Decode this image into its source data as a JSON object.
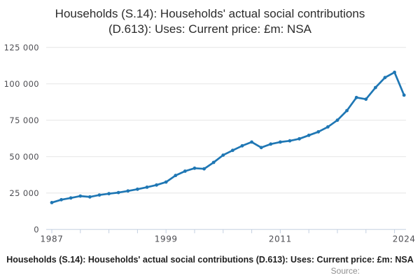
{
  "title": {
    "line1": "Households (S.14): Households' actual social contributions",
    "line2": "(D.613): Uses: Current price: £m: NSA"
  },
  "footer": {
    "caption": "Households (S.14): Households' actual social contributions (D.613): Uses: Current price: £m: NSA",
    "source": "Source:"
  },
  "colors": {
    "line": "#1f77b4",
    "grid": "#e6e6e6",
    "axis": "#c3cfe0",
    "tick_label": "#4d4d52",
    "title_text": "#2b2b2b",
    "caption_text": "#1f1f1f",
    "source_text": "#8f8f8f"
  },
  "chart_data": {
    "type": "line",
    "title": "Households (S.14): Households' actual social contributions (D.613): Uses: Current price: £m: NSA",
    "xlabel": "",
    "ylabel": "",
    "legend": "none",
    "grid": "horizontal",
    "marker": "dot",
    "xlim": [
      1987,
      2024
    ],
    "ylim": [
      0,
      125000
    ],
    "x": [
      1987,
      1988,
      1989,
      1990,
      1991,
      1992,
      1993,
      1994,
      1995,
      1996,
      1997,
      1998,
      1999,
      2000,
      2001,
      2002,
      2003,
      2004,
      2005,
      2006,
      2007,
      2008,
      2009,
      2010,
      2011,
      2012,
      2013,
      2014,
      2015,
      2016,
      2017,
      2018,
      2019,
      2020,
      2021,
      2022,
      2023,
      2024
    ],
    "values": [
      18400,
      20400,
      21600,
      22900,
      22300,
      23600,
      24500,
      25300,
      26400,
      27600,
      29000,
      30500,
      32500,
      37000,
      40000,
      42000,
      41600,
      46000,
      51000,
      54300,
      57400,
      60000,
      56200,
      58600,
      60000,
      60800,
      62200,
      64600,
      67000,
      70400,
      75000,
      81600,
      90600,
      89400,
      97400,
      104300,
      107900,
      92200
    ],
    "y_ticks": [
      0,
      25000,
      50000,
      75000,
      100000,
      125000
    ],
    "y_tick_labels": [
      "0",
      "25 000",
      "50 000",
      "75 000",
      "100 000",
      "125 000"
    ],
    "x_minor_tick_years": [
      1987,
      1990,
      1993,
      1996,
      1999,
      2002,
      2005,
      2008,
      2011,
      2014,
      2017,
      2020,
      2023
    ],
    "x_labeled_ticks": [
      {
        "year": 1987,
        "label": "1987"
      },
      {
        "year": 1999,
        "label": "1999"
      },
      {
        "year": 2011,
        "label": "2011"
      },
      {
        "year": 2024,
        "label": "2024"
      }
    ]
  }
}
